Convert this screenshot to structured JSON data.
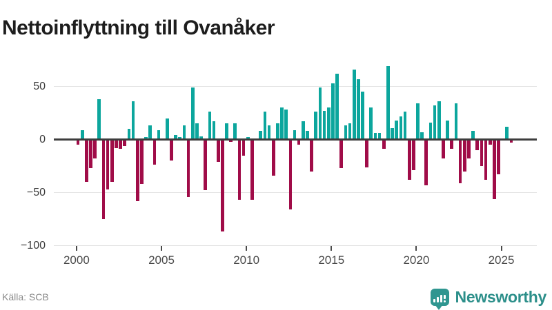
{
  "title": "Nettoinflyttning till Ovanåker",
  "source": "Källa: SCB",
  "branding": {
    "name": "Newsworthy",
    "icon": "speech-bubble-bar-chart-icon"
  },
  "colors": {
    "positive_bar": "#0ca69d",
    "negative_bar": "#a00c48",
    "axis_line": "#3d3d3d",
    "gridline": "#e4e4e4",
    "title_text": "#1d1d1d",
    "tick_label": "#4a4a4a",
    "source_text": "#8a8a8a",
    "brand_teal": "#2f9690"
  },
  "chart_data": {
    "type": "bar",
    "title": "Nettoinflyttning till Ovanåker",
    "frequency": "quarterly",
    "start_period": "2000Q1",
    "end_period": "2025Q3",
    "grid": "horizontal",
    "legend": "none",
    "ylim": [
      -100,
      70
    ],
    "y_ticks": [
      50,
      0,
      -50,
      -100
    ],
    "y_tick_labels": [
      "50",
      "0",
      "−50",
      "−100"
    ],
    "x_ticks": [
      2000,
      2005,
      2010,
      2015,
      2020,
      2025
    ],
    "x_tick_labels": [
      "2000",
      "2005",
      "2010",
      "2015",
      "2020",
      "2025"
    ],
    "series": [
      {
        "name": "Nettoinflyttning",
        "values": [
          -5,
          9,
          -40,
          -27,
          -18,
          38,
          -75,
          -47,
          -40,
          -8,
          -9,
          -6,
          10,
          36,
          -58,
          -42,
          2,
          13,
          -24,
          9,
          0,
          20,
          -20,
          4,
          2,
          13,
          -54,
          49,
          15,
          3,
          -48,
          26,
          17,
          -21,
          -87,
          15,
          -2,
          15,
          -57,
          -15,
          2,
          -57,
          0,
          8,
          26,
          13,
          -34,
          15,
          30,
          28,
          -66,
          9,
          -5,
          17,
          8,
          -30,
          26,
          49,
          27,
          30,
          53,
          62,
          -27,
          13,
          15,
          66,
          57,
          45,
          -26,
          30,
          6,
          6,
          -9,
          69,
          11,
          18,
          22,
          26,
          -38,
          -29,
          34,
          7,
          -43,
          16,
          32,
          36,
          -18,
          18,
          -9,
          34,
          -41,
          -30,
          -18,
          8,
          -10,
          -25,
          -38,
          -5,
          -56,
          -33,
          0,
          12,
          -3
        ]
      }
    ]
  }
}
